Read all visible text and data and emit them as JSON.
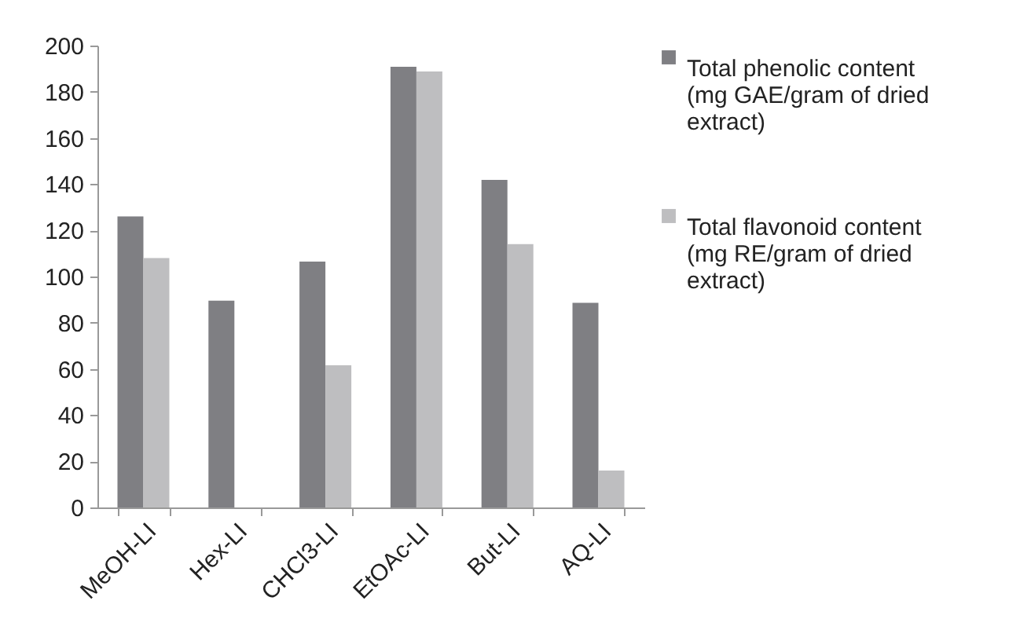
{
  "chart_data": {
    "type": "bar",
    "categories": [
      "MeOH-LI",
      "Hex-LI",
      "CHCl3-LI",
      "EtOAc-LI",
      "But-LI",
      "AQ-LI"
    ],
    "series": [
      {
        "name": "Total phenolic content (mg GAE/gram of dried extract)",
        "color": "#7f7f83",
        "values": [
          126,
          89.5,
          106.5,
          190.8,
          141.8,
          88.6
        ]
      },
      {
        "name": "Total flavonoid content (mg RE/gram of dried extract)",
        "color": "#bebec0",
        "values": [
          108,
          null,
          61.6,
          188.8,
          114,
          16
        ]
      }
    ],
    "ylim": [
      0,
      200
    ],
    "yticks": [
      0,
      20,
      40,
      60,
      80,
      100,
      120,
      140,
      160,
      180,
      200
    ],
    "grid": false,
    "legend": "right"
  }
}
